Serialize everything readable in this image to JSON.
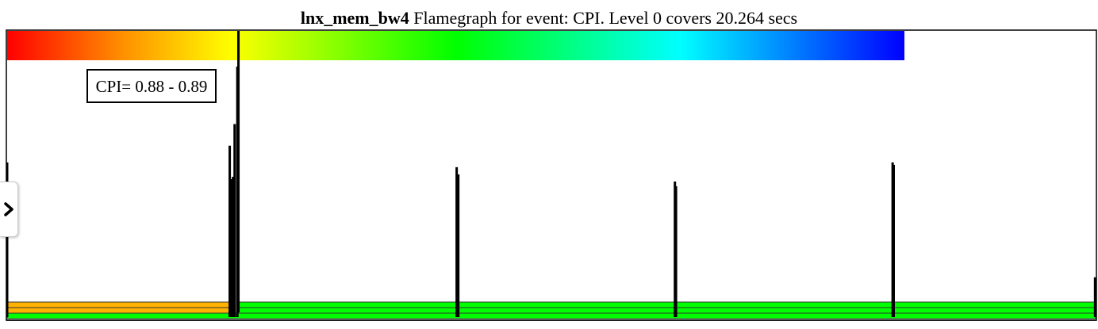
{
  "header": {
    "app_name": "lnx_mem_bw4",
    "title_rest": "Flamegraph for event: CPI. Level 0 covers 20.264 secs"
  },
  "tooltip": {
    "text": "CPI= 0.88 - 0.89"
  },
  "side_toggle": {
    "icon": "chevron-right-icon"
  },
  "colors": {
    "frame_border": "#000000",
    "level_green": "#00ff00",
    "level_orange": "#ffb300",
    "level_dark_green": "#1fd11f",
    "gradient_stops": [
      "#ff0000",
      "#ff8c00",
      "#ffff00",
      "#7fff00",
      "#00ff00",
      "#00ff80",
      "#00ffff",
      "#0080ff",
      "#0000ff"
    ]
  },
  "chart_data": {
    "type": "flamegraph",
    "event": "CPI",
    "level0_secs": 20.264,
    "x": [
      0,
      0.2,
      0.4,
      0.6,
      0.8,
      1.0
    ],
    "spikes": [
      {
        "t": 0.0,
        "level": 0.58
      },
      {
        "t": 0.2045,
        "level": 0.65
      },
      {
        "t": 0.2065,
        "level": 0.51
      },
      {
        "t": 0.2075,
        "level": 0.52
      },
      {
        "t": 0.209,
        "level": 0.74
      },
      {
        "t": 0.2115,
        "level": 0.98
      },
      {
        "t": 0.413,
        "level": 0.56
      },
      {
        "t": 0.4145,
        "level": 0.53
      },
      {
        "t": 0.6135,
        "level": 0.5
      },
      {
        "t": 0.6145,
        "level": 0.48
      },
      {
        "t": 0.8135,
        "level": 0.58
      },
      {
        "t": 0.8145,
        "level": 0.57
      },
      {
        "t": 0.9995,
        "level": 0.1
      }
    ],
    "highlight": {
      "t": 0.2125
    },
    "level_bands": [
      {
        "level": 0,
        "start": 0.0,
        "end": 1.0,
        "color": "#00ff00"
      },
      {
        "level": 1,
        "start": 0.0,
        "end": 0.2055,
        "color": "#ffb300"
      },
      {
        "level": 1,
        "start": 0.2125,
        "end": 1.0,
        "color": "#00ff00"
      },
      {
        "level": 2,
        "start": 0.0,
        "end": 0.2055,
        "color": "#ffb300"
      },
      {
        "level": 2,
        "start": 0.2125,
        "end": 1.0,
        "color": "#00ff00"
      }
    ]
  }
}
